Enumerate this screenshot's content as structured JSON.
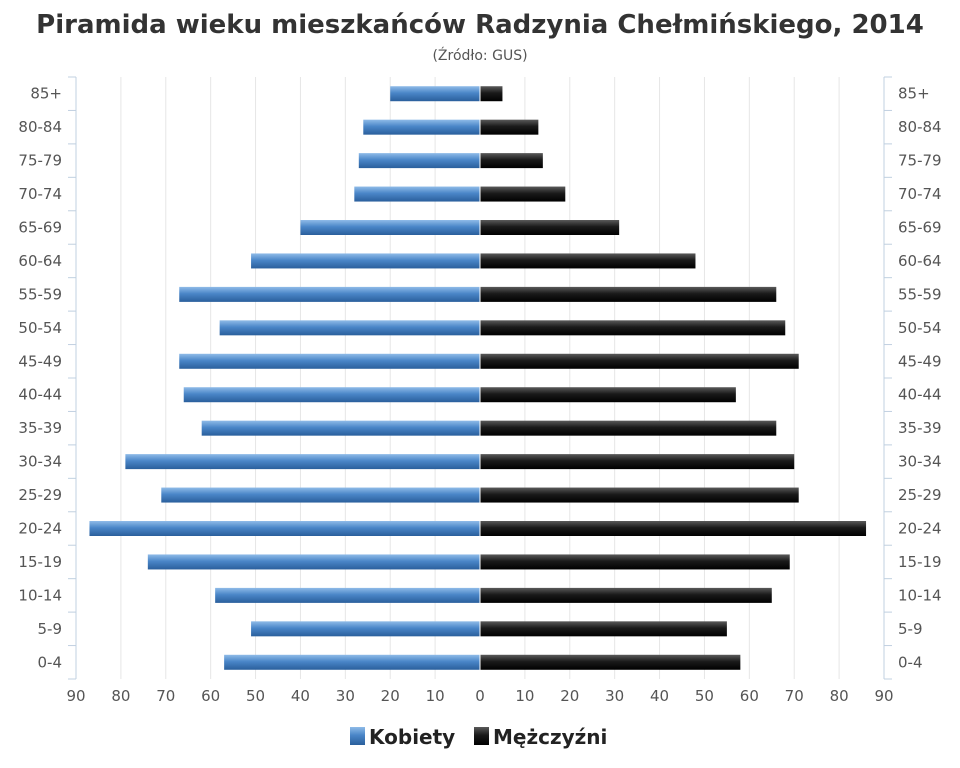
{
  "chart_data": {
    "type": "bar",
    "orientation": "horizontal-pyramid",
    "title": "Piramida wieku mieszkańców Radzynia Chełmińskiego, 2014",
    "subtitle": "(Źródło: GUS)",
    "categories": [
      "85+",
      "80-84",
      "75-79",
      "70-74",
      "65-69",
      "60-64",
      "55-59",
      "50-54",
      "45-49",
      "40-44",
      "35-39",
      "30-34",
      "25-29",
      "20-24",
      "15-19",
      "10-14",
      "5-9",
      "0-4"
    ],
    "series": [
      {
        "name": "Kobiety",
        "color": "#4a86c8",
        "side": "left",
        "values": [
          20,
          26,
          27,
          28,
          40,
          51,
          67,
          58,
          67,
          66,
          62,
          79,
          71,
          87,
          74,
          59,
          51,
          57
        ]
      },
      {
        "name": "Mężczyźni",
        "color": "#1a1a1a",
        "side": "right",
        "values": [
          5,
          13,
          14,
          19,
          31,
          48,
          66,
          68,
          71,
          57,
          66,
          70,
          71,
          86,
          69,
          65,
          55,
          58
        ]
      }
    ],
    "x_ticks": [
      "90",
      "80",
      "70",
      "60",
      "50",
      "40",
      "30",
      "20",
      "10",
      "0",
      "10",
      "20",
      "30",
      "40",
      "50",
      "60",
      "70",
      "80",
      "90"
    ],
    "xlim": [
      -90,
      90
    ],
    "grid": true,
    "legend_position": "bottom-center"
  }
}
